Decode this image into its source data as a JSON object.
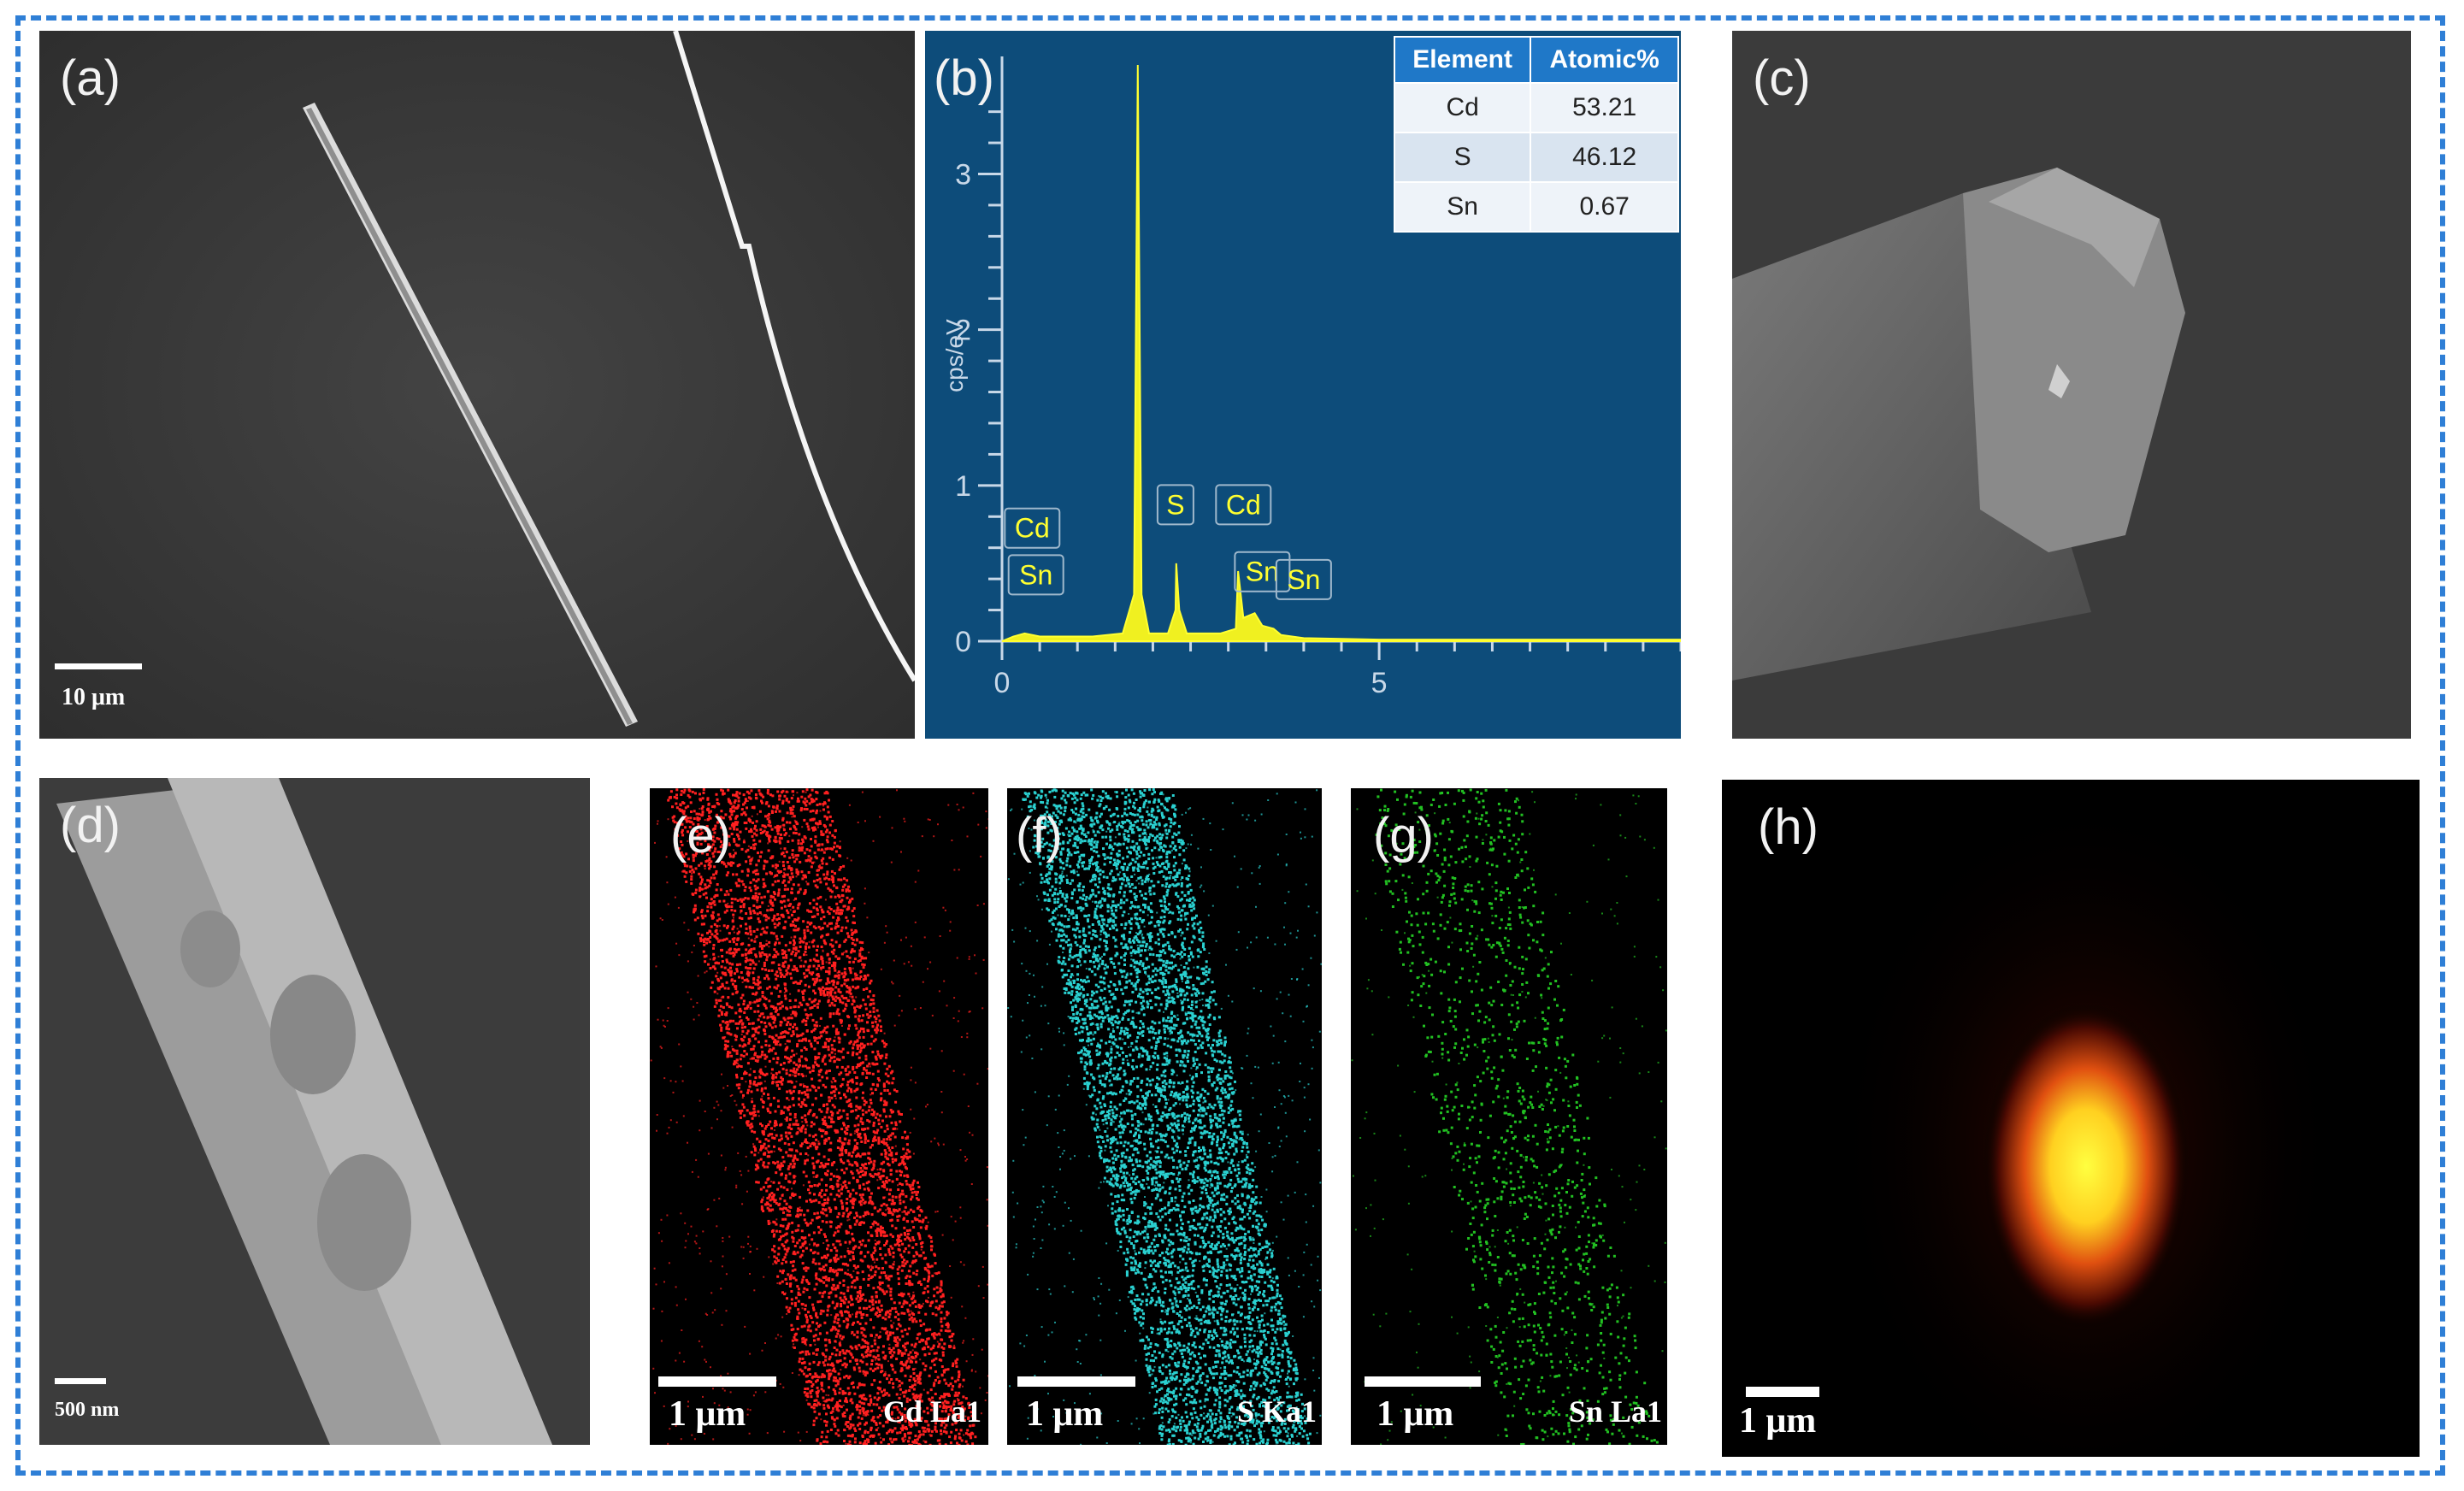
{
  "panels": {
    "a": {
      "label": "(a)",
      "scale": "10 μm"
    },
    "b": {
      "label": "(b)",
      "table": {
        "headers": [
          "Element",
          "Atomic%"
        ],
        "rows": [
          [
            "Cd",
            "53.21"
          ],
          [
            "S",
            "46.12"
          ],
          [
            "Sn",
            "0.67"
          ]
        ]
      }
    },
    "c": {
      "label": "(c)"
    },
    "d": {
      "label": "(d)",
      "scale": "500 nm"
    },
    "e": {
      "label": "(e)",
      "scale": "1 μm",
      "map": "Cd La1",
      "color": "#ff2020"
    },
    "f": {
      "label": "(f)",
      "scale": "1 μm",
      "map": "S Ka1",
      "color": "#2ad0d0"
    },
    "g": {
      "label": "(g)",
      "scale": "1 μm",
      "map": "Sn La1",
      "color": "#22c022"
    },
    "h": {
      "label": "(h)",
      "scale": "1 μm"
    }
  },
  "chart_data": {
    "type": "line",
    "title": "",
    "xlabel": "",
    "ylabel": "cps/eV",
    "xlim": [
      0,
      9
    ],
    "ylim": [
      0,
      3.7
    ],
    "x_ticks": [
      "0",
      "5"
    ],
    "y_ticks": [
      "0",
      "1",
      "2",
      "3"
    ],
    "spectrum": [
      [
        0,
        0.0
      ],
      [
        0.15,
        0.03
      ],
      [
        0.3,
        0.05
      ],
      [
        0.5,
        0.03
      ],
      [
        0.8,
        0.03
      ],
      [
        1.2,
        0.03
      ],
      [
        1.6,
        0.05
      ],
      [
        1.75,
        0.3
      ],
      [
        1.8,
        3.7
      ],
      [
        1.85,
        0.3
      ],
      [
        1.95,
        0.05
      ],
      [
        2.2,
        0.05
      ],
      [
        2.3,
        0.2
      ],
      [
        2.31,
        0.5
      ],
      [
        2.35,
        0.2
      ],
      [
        2.45,
        0.05
      ],
      [
        2.9,
        0.05
      ],
      [
        3.1,
        0.08
      ],
      [
        3.13,
        0.45
      ],
      [
        3.2,
        0.15
      ],
      [
        3.35,
        0.18
      ],
      [
        3.45,
        0.1
      ],
      [
        3.6,
        0.08
      ],
      [
        3.7,
        0.04
      ],
      [
        4.0,
        0.02
      ],
      [
        5.0,
        0.01
      ],
      [
        9.0,
        0.01
      ]
    ],
    "peak_labels": [
      {
        "name": "Cd",
        "x": 0.4,
        "y": 0.6
      },
      {
        "name": "Sn",
        "x": 0.45,
        "y": 0.3
      },
      {
        "name": "S",
        "x": 2.3,
        "y": 0.75
      },
      {
        "name": "Cd",
        "x": 3.2,
        "y": 0.75
      },
      {
        "name": "Sn",
        "x": 3.45,
        "y": 0.32
      },
      {
        "name": "Sn",
        "x": 4.0,
        "y": 0.27
      }
    ]
  }
}
